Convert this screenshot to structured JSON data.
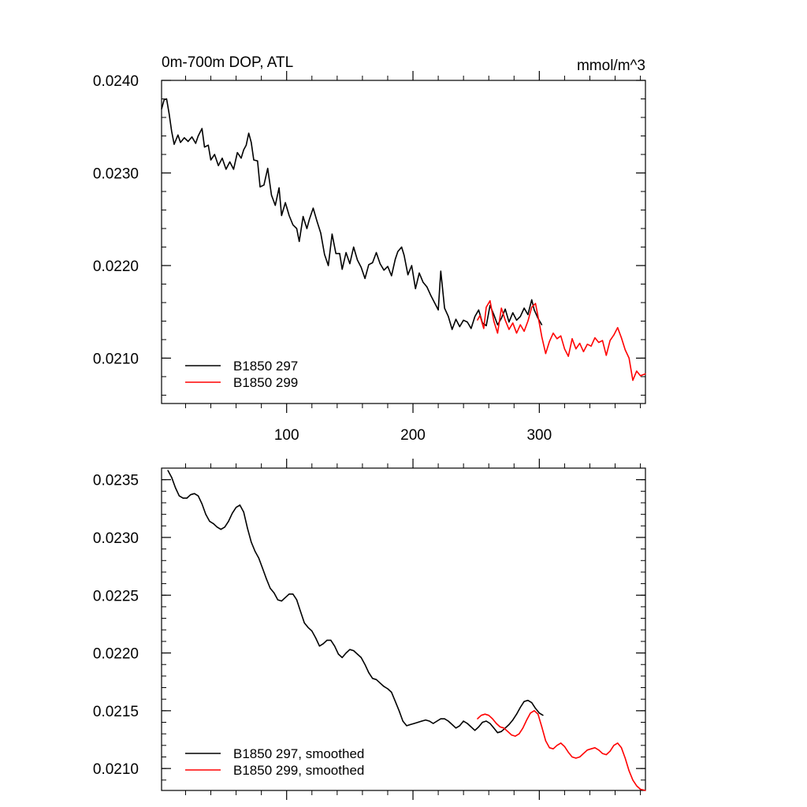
{
  "chart_data": [
    {
      "type": "line",
      "title_left": "0m-700m DOP, ATL",
      "title_right": "mmol/m^3",
      "xlabel": "",
      "ylabel": "",
      "xlim": [
        1,
        384
      ],
      "ylim": [
        0.02051,
        0.024
      ],
      "xticks": [
        100,
        200,
        300
      ],
      "xtick_labels": [
        "100",
        "200",
        "300"
      ],
      "yticks": [
        0.021,
        0.022,
        0.023,
        0.024
      ],
      "ytick_labels": [
        "0.0210",
        "0.0220",
        "0.0230",
        "0.0240"
      ],
      "grid": false,
      "legend_position": "bottom-left",
      "series": [
        {
          "name": "B1850 297",
          "color": "#000000",
          "x": [
            1,
            3,
            5,
            7,
            9,
            11,
            14,
            16,
            19,
            22,
            25,
            28,
            30,
            33,
            35,
            38,
            40,
            43,
            46,
            49,
            52,
            55,
            58,
            61,
            64,
            66,
            68,
            70,
            72,
            74,
            77,
            79,
            82,
            85,
            88,
            91,
            94,
            96,
            99,
            102,
            105,
            108,
            110,
            113,
            116,
            118,
            121,
            124,
            127,
            130,
            133,
            136,
            139,
            142,
            144,
            147,
            150,
            153,
            156,
            159,
            162,
            165,
            168,
            171,
            174,
            177,
            180,
            183,
            186,
            188,
            191,
            193,
            196,
            199,
            202,
            205,
            208,
            211,
            214,
            217,
            220,
            222,
            225,
            228,
            231,
            234,
            237,
            240,
            243,
            246,
            249,
            252,
            255,
            258,
            261,
            264,
            267,
            270,
            273,
            276,
            279,
            282,
            285,
            288,
            291,
            294,
            296,
            299,
            302
          ],
          "y": [
            0.02369,
            0.02379,
            0.0238,
            0.02364,
            0.02345,
            0.02331,
            0.02341,
            0.02333,
            0.02338,
            0.02334,
            0.02339,
            0.02332,
            0.0234,
            0.02348,
            0.02328,
            0.0233,
            0.02314,
            0.0232,
            0.02308,
            0.02316,
            0.02304,
            0.02312,
            0.02304,
            0.02322,
            0.02316,
            0.02325,
            0.0233,
            0.02343,
            0.02333,
            0.02314,
            0.02313,
            0.02285,
            0.02287,
            0.02305,
            0.02276,
            0.02265,
            0.02284,
            0.02254,
            0.02268,
            0.02254,
            0.02244,
            0.0224,
            0.02226,
            0.02253,
            0.0224,
            0.0225,
            0.02262,
            0.02248,
            0.02235,
            0.02212,
            0.022,
            0.02234,
            0.02213,
            0.02213,
            0.02196,
            0.02214,
            0.02202,
            0.0222,
            0.02206,
            0.02198,
            0.02186,
            0.02201,
            0.02203,
            0.02214,
            0.02202,
            0.02195,
            0.02199,
            0.02189,
            0.02207,
            0.02215,
            0.0222,
            0.02211,
            0.0219,
            0.022,
            0.02175,
            0.02192,
            0.02182,
            0.02177,
            0.02168,
            0.0216,
            0.02152,
            0.02194,
            0.02154,
            0.02145,
            0.02131,
            0.02142,
            0.02134,
            0.02141,
            0.02139,
            0.02132,
            0.02145,
            0.02152,
            0.02138,
            0.02135,
            0.02157,
            0.02147,
            0.02136,
            0.02143,
            0.02153,
            0.02139,
            0.02149,
            0.02141,
            0.02145,
            0.02154,
            0.02147,
            0.02163,
            0.02152,
            0.02143,
            0.02136
          ]
        },
        {
          "name": "B1850 299",
          "color": "#ff0000",
          "x": [
            251,
            253,
            256,
            258,
            261,
            264,
            267,
            270,
            273,
            276,
            279,
            282,
            285,
            288,
            291,
            294,
            297,
            300,
            302,
            305,
            308,
            311,
            314,
            317,
            320,
            323,
            326,
            329,
            332,
            335,
            338,
            341,
            344,
            347,
            350,
            353,
            356,
            359,
            362,
            365,
            368,
            371,
            374,
            377,
            380,
            384
          ],
          "y": [
            0.02141,
            0.02146,
            0.02132,
            0.02155,
            0.02162,
            0.0214,
            0.02127,
            0.02154,
            0.02141,
            0.02131,
            0.02138,
            0.02127,
            0.02136,
            0.02129,
            0.0214,
            0.02155,
            0.02159,
            0.02138,
            0.02123,
            0.02105,
            0.02118,
            0.02127,
            0.02121,
            0.02124,
            0.0211,
            0.02102,
            0.02121,
            0.0211,
            0.02116,
            0.02107,
            0.02115,
            0.02113,
            0.02122,
            0.02117,
            0.02119,
            0.02103,
            0.02119,
            0.02125,
            0.02133,
            0.02122,
            0.02109,
            0.021,
            0.02076,
            0.02086,
            0.02081,
            0.02083
          ]
        }
      ]
    },
    {
      "type": "line",
      "title_left": "",
      "title_right": "",
      "xlabel": "",
      "ylabel": "",
      "xlim": [
        1,
        384
      ],
      "ylim": [
        0.02081,
        0.0236
      ],
      "xticks": [
        100,
        200,
        300
      ],
      "xtick_labels": [],
      "yticks": [
        0.021,
        0.0215,
        0.022,
        0.0225,
        0.023,
        0.0235
      ],
      "ytick_labels": [
        "0.0210",
        "0.0215",
        "0.0220",
        "0.0225",
        "0.0230",
        "0.0235"
      ],
      "grid": false,
      "legend_position": "bottom-left",
      "series": [
        {
          "name": "B1850 297, smoothed",
          "color": "#000000",
          "x": [
            6,
            9,
            12,
            15,
            18,
            21,
            24,
            27,
            30,
            33,
            36,
            39,
            42,
            45,
            48,
            51,
            54,
            57,
            60,
            63,
            66,
            69,
            72,
            75,
            78,
            81,
            84,
            87,
            90,
            93,
            96,
            99,
            102,
            105,
            108,
            111,
            114,
            117,
            120,
            123,
            126,
            129,
            132,
            135,
            138,
            141,
            144,
            147,
            150,
            153,
            156,
            159,
            162,
            165,
            168,
            171,
            174,
            177,
            180,
            183,
            186,
            189,
            192,
            195,
            198,
            201,
            204,
            207,
            210,
            213,
            216,
            219,
            222,
            225,
            228,
            231,
            234,
            237,
            240,
            243,
            246,
            249,
            252,
            255,
            258,
            261,
            264,
            267,
            270,
            273,
            276,
            279,
            282,
            285,
            288,
            291,
            294,
            297,
            300,
            303
          ],
          "y": [
            0.02358,
            0.02352,
            0.02343,
            0.02336,
            0.02334,
            0.02334,
            0.02337,
            0.02338,
            0.02336,
            0.02329,
            0.0232,
            0.02314,
            0.02312,
            0.02309,
            0.02307,
            0.02309,
            0.02314,
            0.02321,
            0.02326,
            0.02328,
            0.02322,
            0.02308,
            0.02296,
            0.02288,
            0.02282,
            0.02273,
            0.02264,
            0.02256,
            0.02252,
            0.02246,
            0.02245,
            0.02248,
            0.02251,
            0.02251,
            0.02246,
            0.02236,
            0.02226,
            0.02222,
            0.02219,
            0.02213,
            0.02206,
            0.02208,
            0.02211,
            0.02211,
            0.02206,
            0.02199,
            0.02196,
            0.022,
            0.02203,
            0.02202,
            0.02199,
            0.02196,
            0.0219,
            0.02183,
            0.02178,
            0.02177,
            0.02174,
            0.02171,
            0.02169,
            0.02166,
            0.02158,
            0.0215,
            0.02141,
            0.02137,
            0.02138,
            0.02139,
            0.0214,
            0.02141,
            0.02142,
            0.02141,
            0.02139,
            0.02141,
            0.02143,
            0.02143,
            0.02141,
            0.02138,
            0.02135,
            0.02137,
            0.02141,
            0.02139,
            0.02136,
            0.02133,
            0.02136,
            0.0214,
            0.02141,
            0.02139,
            0.02135,
            0.02131,
            0.02132,
            0.02135,
            0.02138,
            0.02142,
            0.02147,
            0.02153,
            0.02158,
            0.02159,
            0.02157,
            0.02152,
            0.02148,
            0.02146
          ]
        },
        {
          "name": "B1850 299, smoothed",
          "color": "#ff0000",
          "x": [
            251,
            254,
            257,
            260,
            263,
            266,
            269,
            272,
            275,
            278,
            281,
            284,
            287,
            290,
            293,
            296,
            299,
            302,
            305,
            308,
            311,
            314,
            317,
            320,
            323,
            326,
            329,
            332,
            335,
            338,
            341,
            344,
            347,
            350,
            353,
            356,
            359,
            362,
            365,
            368,
            371,
            374,
            377,
            380,
            384
          ],
          "y": [
            0.02143,
            0.02146,
            0.02147,
            0.02146,
            0.02143,
            0.02139,
            0.02136,
            0.02135,
            0.02132,
            0.02129,
            0.02128,
            0.0213,
            0.02135,
            0.02142,
            0.02148,
            0.0215,
            0.02147,
            0.02136,
            0.02124,
            0.02118,
            0.02117,
            0.0212,
            0.02122,
            0.02119,
            0.02114,
            0.0211,
            0.02109,
            0.0211,
            0.02113,
            0.02116,
            0.02117,
            0.02118,
            0.02116,
            0.02113,
            0.02112,
            0.02115,
            0.0212,
            0.02122,
            0.02118,
            0.02109,
            0.02098,
            0.0209,
            0.02085,
            0.02082,
            0.02081
          ]
        }
      ]
    }
  ]
}
